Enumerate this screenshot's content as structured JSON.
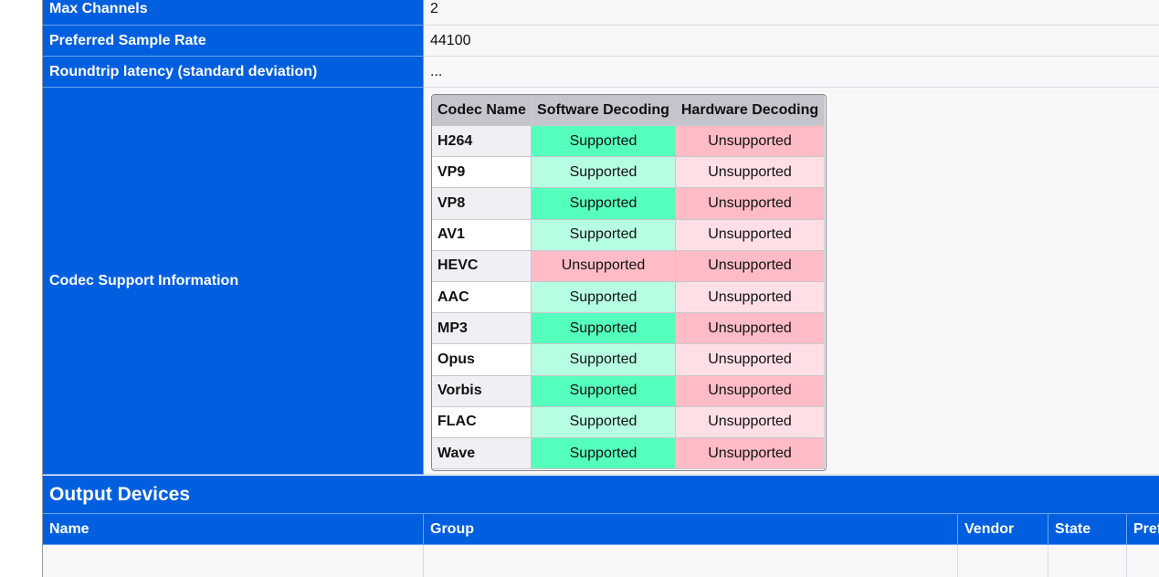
{
  "info_table": {
    "rows": [
      {
        "label": "Max Channels",
        "value": "2"
      },
      {
        "label": "Preferred Sample Rate",
        "value": "44100"
      },
      {
        "label": "Roundtrip latency (standard deviation)",
        "value": "..."
      },
      {
        "label": "Codec Support Information"
      }
    ]
  },
  "codec_table": {
    "headers": [
      "Codec Name",
      "Software Decoding",
      "Hardware Decoding"
    ],
    "rows": [
      [
        "H264",
        "Supported",
        "Unsupported"
      ],
      [
        "VP9",
        "Supported",
        "Unsupported"
      ],
      [
        "VP8",
        "Supported",
        "Unsupported"
      ],
      [
        "AV1",
        "Supported",
        "Unsupported"
      ],
      [
        "HEVC",
        "Unsupported",
        "Unsupported"
      ],
      [
        "AAC",
        "Supported",
        "Unsupported"
      ],
      [
        "MP3",
        "Supported",
        "Unsupported"
      ],
      [
        "Opus",
        "Supported",
        "Unsupported"
      ],
      [
        "Vorbis",
        "Supported",
        "Unsupported"
      ],
      [
        "FLAC",
        "Supported",
        "Unsupported"
      ],
      [
        "Wave",
        "Supported",
        "Unsupported"
      ]
    ]
  },
  "output_devices": {
    "title": "Output Devices",
    "columns": [
      "Name",
      "Group",
      "Vendor",
      "State",
      "Pref"
    ]
  }
}
